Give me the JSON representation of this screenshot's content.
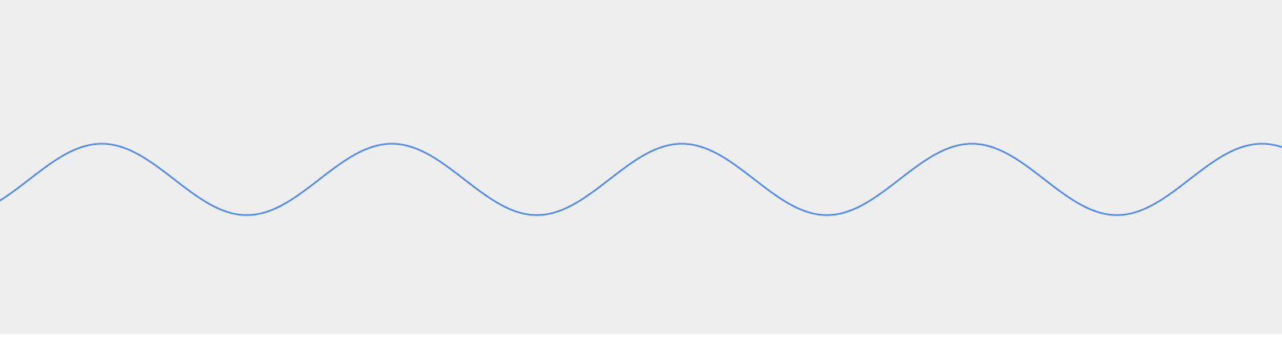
{
  "colors": {
    "background": "#eeeeee",
    "wave": "#4a86e8"
  }
}
